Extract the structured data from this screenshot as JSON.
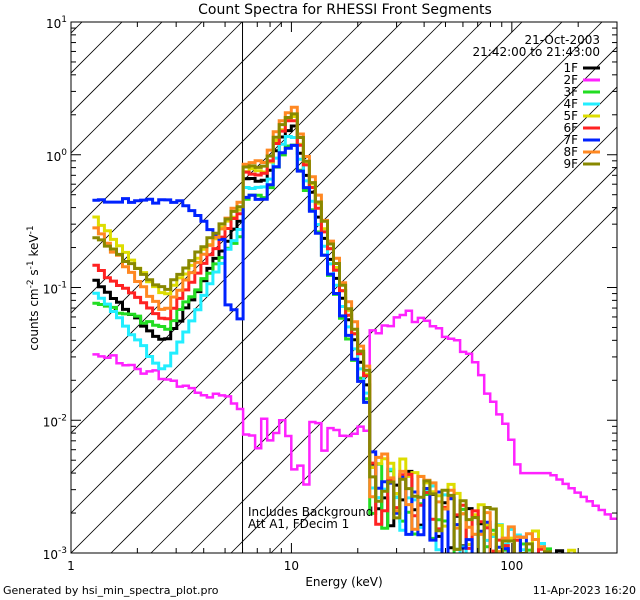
{
  "chart_data": {
    "type": "line",
    "title": "Count Spectra for RHESSI Front Segments",
    "xlabel": "Energy (keV)",
    "ylabel_parts": [
      "counts cm",
      "-2",
      " s",
      "-1",
      " keV",
      "-1"
    ],
    "x_scale": "log",
    "y_scale": "log",
    "xlim": [
      1,
      300
    ],
    "ylim": [
      0.001,
      10
    ],
    "x_tick_labels": [
      "1",
      "10",
      "100"
    ],
    "y_tick_labels": [
      {
        "base": "10",
        "exp": "-3"
      },
      {
        "base": "10",
        "exp": "-2"
      },
      {
        "base": "10",
        "exp": "-1"
      },
      {
        "base": "10",
        "exp": "0"
      },
      {
        "base": "10",
        "exp": "1"
      }
    ],
    "date": "21-Oct-2003",
    "time_range": "21:42:00 to 21:43:00",
    "attenuator_cutoff_kev": 6,
    "annotations": [
      "Includes Background",
      "Att A1, FDecim 1"
    ],
    "footer_left": "Generated by hsi_min_spectra_plot.pro",
    "footer_right": "11-Apr-2023 16:20",
    "legend_position": "top-right",
    "series": [
      {
        "name": "1F",
        "color": "#000000",
        "shape": "peak",
        "peak": 1.6,
        "low": 0.12,
        "low_end": 0.04,
        "tail": 0.003
      },
      {
        "name": "2F",
        "color": "#ff22ff",
        "shape": "background"
      },
      {
        "name": "3F",
        "color": "#22dd22",
        "shape": "peak",
        "peak": 1.2,
        "low": 0.08,
        "low_end": 0.05,
        "tail": 0.0028
      },
      {
        "name": "4F",
        "color": "#22eeff",
        "shape": "peak",
        "peak": 1.4,
        "low": 0.1,
        "low_end": 0.025,
        "tail": 0.003
      },
      {
        "name": "5F",
        "color": "#dddd00",
        "shape": "peak",
        "peak": 1.9,
        "low": 0.35,
        "low_end": 0.09,
        "tail": 0.0035
      },
      {
        "name": "6F",
        "color": "#ff2222",
        "shape": "peak",
        "peak": 1.8,
        "low": 0.15,
        "low_end": 0.06,
        "tail": 0.003
      },
      {
        "name": "7F",
        "color": "#0022ff",
        "shape": "blue",
        "peak": 1.2,
        "low": 0.3,
        "low_end": 0.45,
        "tail": 0.003
      },
      {
        "name": "8F",
        "color": "#ff8822",
        "shape": "peak",
        "peak": 2.2,
        "low": 0.3,
        "low_end": 0.07,
        "tail": 0.0035
      },
      {
        "name": "9F",
        "color": "#888800",
        "shape": "peak",
        "peak": 2.0,
        "low": 0.25,
        "low_end": 0.1,
        "tail": 0.0035
      }
    ]
  }
}
